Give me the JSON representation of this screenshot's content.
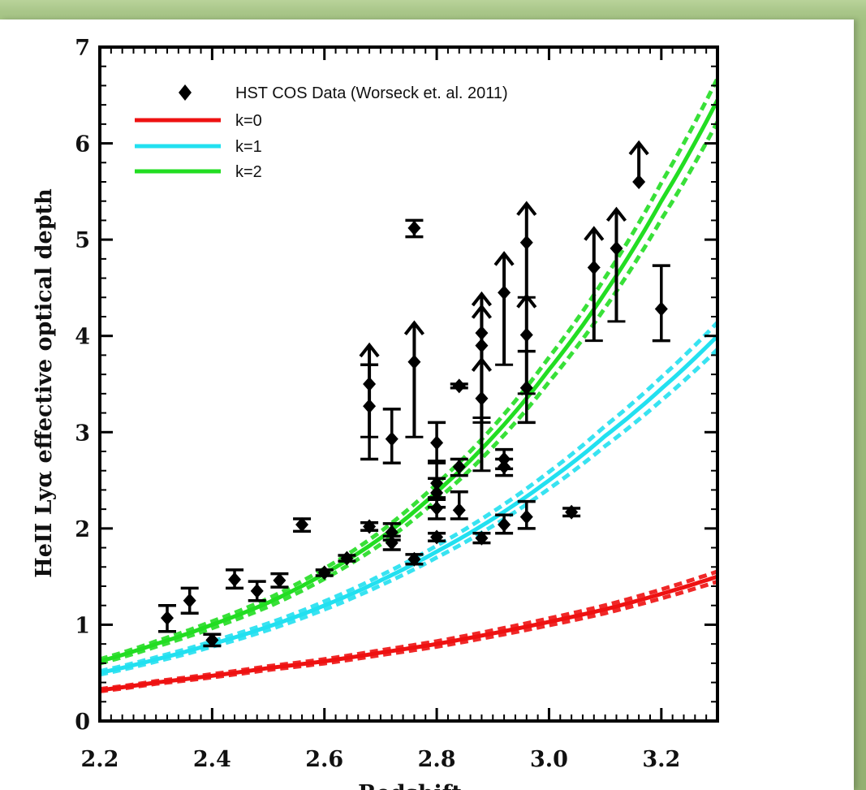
{
  "chart_data": {
    "type": "scatter",
    "xlabel": "Redshift",
    "ylabel": "HeII Lyα effective optical depth",
    "xlim": [
      2.2,
      3.3
    ],
    "ylim": [
      0,
      7
    ],
    "x_ticks": [
      "2.2",
      "2.4",
      "2.6",
      "2.8",
      "3.0",
      "3.2"
    ],
    "y_ticks": [
      "0",
      "1",
      "2",
      "3",
      "4",
      "5",
      "6",
      "7"
    ],
    "legend": [
      {
        "label": "HST COS Data (Worseck et. al. 2011)",
        "marker": "diamond",
        "color": "#000000"
      },
      {
        "label": "k=0",
        "color": "#ee1111"
      },
      {
        "label": "k=1",
        "color": "#22e0f0"
      },
      {
        "label": "k=2",
        "color": "#22dd22"
      }
    ],
    "legend_position": "top-left",
    "data_points": [
      {
        "x": 2.32,
        "y": 1.07,
        "lo": 0.93,
        "hi": 1.2
      },
      {
        "x": 2.36,
        "y": 1.25,
        "lo": 1.12,
        "hi": 1.38
      },
      {
        "x": 2.4,
        "y": 0.84,
        "lo": 0.78,
        "hi": 0.9
      },
      {
        "x": 2.44,
        "y": 1.47,
        "lo": 1.38,
        "hi": 1.57
      },
      {
        "x": 2.48,
        "y": 1.35,
        "lo": 1.25,
        "hi": 1.45
      },
      {
        "x": 2.52,
        "y": 1.46,
        "lo": 1.39,
        "hi": 1.53
      },
      {
        "x": 2.56,
        "y": 2.04,
        "lo": 1.97,
        "hi": 2.1
      },
      {
        "x": 2.6,
        "y": 1.54,
        "lo": 1.51,
        "hi": 1.57
      },
      {
        "x": 2.64,
        "y": 1.69,
        "lo": 1.66,
        "hi": 1.72
      },
      {
        "x": 2.68,
        "y": 3.5,
        "lo": 2.95,
        "lower_limit": true
      },
      {
        "x": 2.68,
        "y": 3.27,
        "lo": 2.72,
        "hi": 3.7
      },
      {
        "x": 2.68,
        "y": 2.02,
        "lo": 1.98,
        "hi": 2.06
      },
      {
        "x": 2.72,
        "y": 2.93,
        "lo": 2.68,
        "hi": 3.24
      },
      {
        "x": 2.72,
        "y": 1.96,
        "lo": 1.88,
        "hi": 2.05
      },
      {
        "x": 2.72,
        "y": 1.85,
        "lo": 1.78,
        "hi": 1.92
      },
      {
        "x": 2.76,
        "y": 5.12,
        "lo": 5.03,
        "hi": 5.2
      },
      {
        "x": 2.76,
        "y": 3.73,
        "lo": 2.95,
        "lower_limit": true
      },
      {
        "x": 2.76,
        "y": 1.68,
        "lo": 1.63,
        "hi": 1.73
      },
      {
        "x": 2.8,
        "y": 2.89,
        "lo": 2.68,
        "hi": 3.1
      },
      {
        "x": 2.8,
        "y": 2.47,
        "lo": 2.3,
        "hi": 2.7
      },
      {
        "x": 2.8,
        "y": 2.37,
        "lo": 2.22,
        "hi": 2.52
      },
      {
        "x": 2.8,
        "y": 2.21,
        "lo": 2.1,
        "hi": 2.32
      },
      {
        "x": 2.8,
        "y": 1.91,
        "lo": 1.87,
        "hi": 1.95
      },
      {
        "x": 2.84,
        "y": 3.48,
        "lo": 3.46,
        "hi": 3.5
      },
      {
        "x": 2.84,
        "y": 2.64,
        "lo": 2.55,
        "hi": 2.72
      },
      {
        "x": 2.84,
        "y": 2.19,
        "lo": 2.1,
        "hi": 2.38
      },
      {
        "x": 2.88,
        "y": 4.03,
        "lo": 3.15,
        "lower_limit": true
      },
      {
        "x": 2.88,
        "y": 3.9,
        "lo": 3.1,
        "lower_limit": true
      },
      {
        "x": 2.88,
        "y": 3.35,
        "lo": 2.6,
        "lower_limit": true
      },
      {
        "x": 2.88,
        "y": 1.9,
        "lo": 1.85,
        "hi": 1.95
      },
      {
        "x": 2.92,
        "y": 4.45,
        "lo": 3.7,
        "lower_limit": true
      },
      {
        "x": 2.92,
        "y": 2.72,
        "lo": 2.62,
        "hi": 2.82
      },
      {
        "x": 2.92,
        "y": 2.64,
        "lo": 2.55,
        "hi": 2.72
      },
      {
        "x": 2.92,
        "y": 2.04,
        "lo": 1.95,
        "hi": 2.14
      },
      {
        "x": 2.96,
        "y": 4.97,
        "lo": 4.4,
        "lower_limit": true
      },
      {
        "x": 2.96,
        "y": 4.01,
        "lo": 3.4,
        "lower_limit": true
      },
      {
        "x": 2.96,
        "y": 3.46,
        "lo": 3.1,
        "hi": 3.84
      },
      {
        "x": 2.96,
        "y": 2.12,
        "lo": 2.0,
        "hi": 2.28
      },
      {
        "x": 3.04,
        "y": 2.17,
        "lo": 2.13,
        "hi": 2.21
      },
      {
        "x": 3.08,
        "y": 4.71,
        "lo": 3.95,
        "lower_limit": true
      },
      {
        "x": 3.12,
        "y": 4.91,
        "lo": 4.15,
        "lower_limit": true
      },
      {
        "x": 3.16,
        "y": 5.6,
        "lo": 5.6,
        "lower_limit": true
      },
      {
        "x": 3.2,
        "y": 4.28,
        "lo": 3.95,
        "hi": 4.73
      }
    ],
    "series": [
      {
        "name": "k=0",
        "color": "#ee1111",
        "x": [
          2.2,
          2.3,
          2.4,
          2.5,
          2.6,
          2.7,
          2.8,
          2.9,
          3.0,
          3.1,
          3.2,
          3.3
        ],
        "y": [
          0.32,
          0.4,
          0.47,
          0.55,
          0.62,
          0.71,
          0.8,
          0.91,
          1.03,
          1.16,
          1.32,
          1.5
        ]
      },
      {
        "name": "k=1",
        "color": "#22e0f0",
        "x": [
          2.2,
          2.3,
          2.4,
          2.5,
          2.6,
          2.7,
          2.8,
          2.9,
          3.0,
          3.1,
          3.2,
          3.3
        ],
        "y": [
          0.5,
          0.64,
          0.8,
          0.98,
          1.2,
          1.46,
          1.76,
          2.1,
          2.5,
          2.96,
          3.45,
          4.0
        ]
      },
      {
        "name": "k=2",
        "color": "#22dd22",
        "x": [
          2.2,
          2.3,
          2.4,
          2.5,
          2.6,
          2.7,
          2.8,
          2.9,
          3.0,
          3.1,
          3.2,
          3.3
        ],
        "y": [
          0.62,
          0.8,
          1.0,
          1.23,
          1.53,
          1.9,
          2.38,
          2.95,
          3.65,
          4.45,
          5.4,
          6.45
        ]
      }
    ],
    "grid": false
  }
}
